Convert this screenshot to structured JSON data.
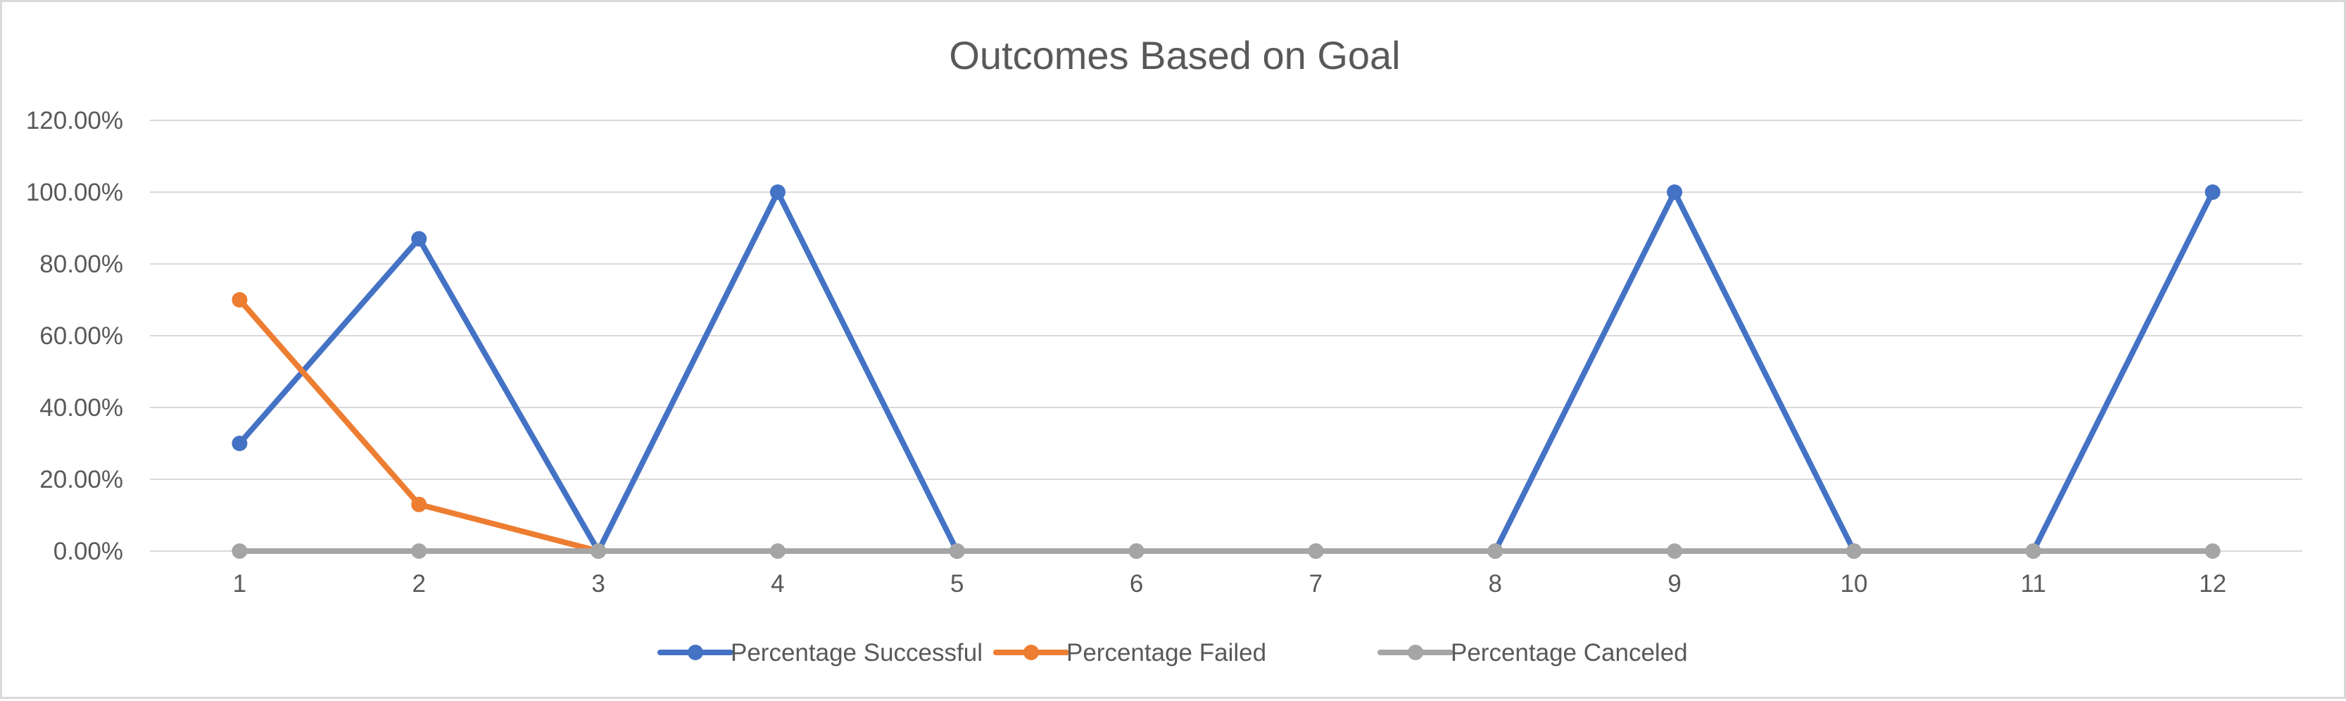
{
  "chart_data": {
    "type": "line",
    "title": "Outcomes Based on Goal",
    "xlabel": "",
    "ylabel": "",
    "categories": [
      "1",
      "2",
      "3",
      "4",
      "5",
      "6",
      "7",
      "8",
      "9",
      "10",
      "11",
      "12"
    ],
    "ylim": [
      0,
      1.2
    ],
    "y_ticks": [
      {
        "value": 0,
        "label": "0.00%"
      },
      {
        "value": 0.2,
        "label": "20.00%"
      },
      {
        "value": 0.4,
        "label": "40.00%"
      },
      {
        "value": 0.6,
        "label": "60.00%"
      },
      {
        "value": 0.8,
        "label": "80.00%"
      },
      {
        "value": 1.0,
        "label": "100.00%"
      },
      {
        "value": 1.2,
        "label": "120.00%"
      }
    ],
    "grid": true,
    "legend_position": "bottom",
    "series": [
      {
        "name": "Percentage Successful",
        "color": "#4472c4",
        "values": [
          0.3,
          0.87,
          0,
          1.0,
          0,
          0,
          0,
          0,
          1.0,
          0,
          0,
          1.0
        ]
      },
      {
        "name": "Percentage Failed",
        "color": "#ed7d31",
        "values": [
          0.7,
          0.13,
          0,
          null,
          null,
          null,
          null,
          null,
          null,
          null,
          null,
          null
        ]
      },
      {
        "name": "Percentage Canceled",
        "color": "#a5a5a5",
        "values": [
          0,
          0,
          0,
          0,
          0,
          0,
          0,
          0,
          0,
          0,
          0,
          0
        ]
      }
    ],
    "gridline_color": "#d9d9d9",
    "axis_color": "#d9d9d9"
  }
}
